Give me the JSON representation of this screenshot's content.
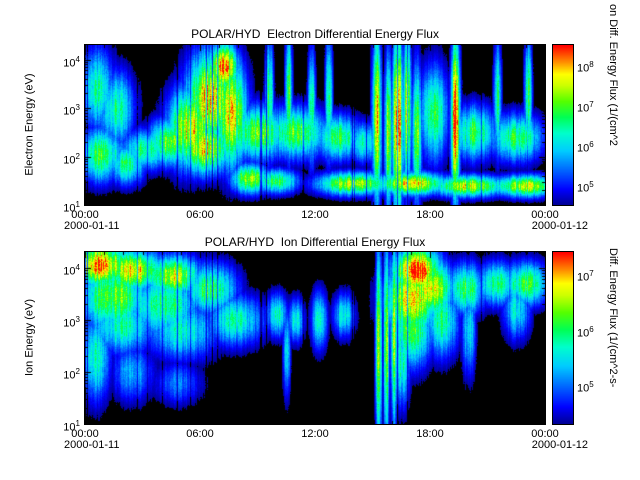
{
  "window": {
    "background": "#ffffff",
    "text_color": "#000000",
    "plot_background": "#000000"
  },
  "colormap": {
    "background": "#000000",
    "stops": [
      [
        0.0,
        "#000090"
      ],
      [
        0.1,
        "#0000ff"
      ],
      [
        0.22,
        "#0066ff"
      ],
      [
        0.34,
        "#00ccff"
      ],
      [
        0.45,
        "#00ffcc"
      ],
      [
        0.55,
        "#00ff55"
      ],
      [
        0.65,
        "#55ff00"
      ],
      [
        0.75,
        "#ccff00"
      ],
      [
        0.82,
        "#ffff00"
      ],
      [
        0.9,
        "#ff8800"
      ],
      [
        1.0,
        "#ff0000"
      ]
    ]
  },
  "chart_data": [
    {
      "type": "heatmap",
      "title": "POLAR/HYD  Electron Differential Energy Flux",
      "ylabel": "Electron Energy (eV)",
      "y_log_range": [
        1,
        4.3
      ],
      "y_tick_exponents": [
        4,
        3,
        2,
        1
      ],
      "x_tick_labels": [
        "00:00",
        "06:00",
        "12:00",
        "18:00",
        "00:00"
      ],
      "x_range_hours": [
        0,
        24
      ],
      "x_dates": [
        "2000-01-11",
        "2000-01-12"
      ],
      "grid": false,
      "colorbar": {
        "label": "on Diff. Energy Flux (1/(cm^2",
        "tick_exponents": [
          8,
          7,
          6,
          5
        ],
        "log_range": [
          4.5,
          8.5
        ]
      },
      "blob_encoding": "t=hours 0-24, e=log10 energy (eV), st/se=gaussian widths, a=relative flux amplitude 0-1 of color scale",
      "blobs": [
        {
          "t": 0.6,
          "e": 3.4,
          "st": 0.7,
          "se": 0.6,
          "a": 0.5
        },
        {
          "t": 1.6,
          "e": 3.0,
          "st": 0.7,
          "se": 0.55,
          "a": 0.52
        },
        {
          "t": 0.8,
          "e": 2.05,
          "st": 0.9,
          "se": 0.4,
          "a": 0.6
        },
        {
          "t": 2.2,
          "e": 1.85,
          "st": 0.7,
          "se": 0.3,
          "a": 0.55
        },
        {
          "t": 3.2,
          "e": 2.15,
          "st": 0.9,
          "se": 0.3,
          "a": 0.6
        },
        {
          "t": 4.3,
          "e": 2.3,
          "st": 0.8,
          "se": 0.35,
          "a": 0.7
        },
        {
          "t": 5.5,
          "e": 2.6,
          "st": 0.9,
          "se": 0.6,
          "a": 0.8
        },
        {
          "t": 6.5,
          "e": 3.2,
          "st": 0.9,
          "se": 0.7,
          "a": 0.85
        },
        {
          "t": 7.2,
          "e": 3.85,
          "st": 0.55,
          "se": 0.35,
          "a": 0.92
        },
        {
          "t": 6.2,
          "e": 2.2,
          "st": 1.0,
          "se": 0.4,
          "a": 0.8
        },
        {
          "t": 7.6,
          "e": 2.9,
          "st": 0.6,
          "se": 0.8,
          "a": 0.8
        },
        {
          "t": 8.6,
          "e": 1.55,
          "st": 0.7,
          "se": 0.22,
          "a": 0.72
        },
        {
          "t": 9.0,
          "e": 2.5,
          "st": 1.2,
          "se": 0.4,
          "a": 0.65
        },
        {
          "t": 9.6,
          "e": 3.2,
          "st": 0.15,
          "se": 0.9,
          "a": 0.6
        },
        {
          "t": 10.6,
          "e": 3.3,
          "st": 0.13,
          "se": 0.95,
          "a": 0.62
        },
        {
          "t": 11.0,
          "e": 2.5,
          "st": 1.2,
          "se": 0.38,
          "a": 0.63
        },
        {
          "t": 11.8,
          "e": 3.0,
          "st": 0.14,
          "se": 0.85,
          "a": 0.6
        },
        {
          "t": 12.7,
          "e": 3.2,
          "st": 0.13,
          "se": 0.95,
          "a": 0.6
        },
        {
          "t": 13.2,
          "e": 2.4,
          "st": 0.9,
          "se": 0.33,
          "a": 0.58
        },
        {
          "t": 14.5,
          "e": 2.3,
          "st": 0.6,
          "se": 0.3,
          "a": 0.5
        },
        {
          "t": 15.2,
          "e": 2.8,
          "st": 0.17,
          "se": 1.25,
          "a": 0.82
        },
        {
          "t": 15.8,
          "e": 2.5,
          "st": 0.14,
          "se": 1.15,
          "a": 0.72
        },
        {
          "t": 16.3,
          "e": 2.7,
          "st": 0.2,
          "se": 1.35,
          "a": 0.98
        },
        {
          "t": 16.8,
          "e": 3.0,
          "st": 0.14,
          "se": 1.15,
          "a": 0.78
        },
        {
          "t": 17.3,
          "e": 2.5,
          "st": 0.18,
          "se": 1.0,
          "a": 0.66
        },
        {
          "t": 18.2,
          "e": 2.9,
          "st": 0.5,
          "se": 0.7,
          "a": 0.6
        },
        {
          "t": 19.3,
          "e": 2.8,
          "st": 0.17,
          "se": 1.2,
          "a": 0.95
        },
        {
          "t": 20.3,
          "e": 2.5,
          "st": 0.8,
          "se": 0.4,
          "a": 0.6
        },
        {
          "t": 21.5,
          "e": 3.2,
          "st": 0.14,
          "se": 0.85,
          "a": 0.55
        },
        {
          "t": 22.5,
          "e": 2.4,
          "st": 1.0,
          "se": 0.35,
          "a": 0.58
        },
        {
          "t": 23.1,
          "e": 3.3,
          "st": 0.14,
          "se": 0.85,
          "a": 0.58
        },
        {
          "t": 14.0,
          "e": 1.45,
          "st": 1.4,
          "se": 0.17,
          "a": 0.76
        },
        {
          "t": 17.0,
          "e": 1.45,
          "st": 1.4,
          "se": 0.17,
          "a": 0.78
        },
        {
          "t": 20.0,
          "e": 1.4,
          "st": 1.4,
          "se": 0.16,
          "a": 0.76
        },
        {
          "t": 23.0,
          "e": 1.4,
          "st": 1.3,
          "se": 0.16,
          "a": 0.74
        },
        {
          "t": 10.0,
          "e": 1.5,
          "st": 0.8,
          "se": 0.18,
          "a": 0.6
        }
      ]
    },
    {
      "type": "heatmap",
      "title": "POLAR/HYD  Ion Differential Energy Flux",
      "ylabel": "Ion Energy (eV)",
      "y_log_range": [
        1,
        4.3
      ],
      "y_tick_exponents": [
        4,
        3,
        2,
        1
      ],
      "x_tick_labels": [
        "00:00",
        "06:00",
        "12:00",
        "18:00",
        "00:00"
      ],
      "x_range_hours": [
        0,
        24
      ],
      "x_dates": [
        "2000-01-11",
        "2000-01-12"
      ],
      "grid": false,
      "colorbar": {
        "label": "Diff. Energy Flux (1/(cm^2-s-",
        "tick_exponents": [
          7,
          6,
          5
        ],
        "log_range": [
          4.3,
          7.4
        ]
      },
      "blob_encoding": "t=hours 0-24, e=log10 energy (eV), st/se=gaussian widths, a=relative flux amplitude 0-1 of color scale",
      "blobs": [
        {
          "t": 0.8,
          "e": 4.05,
          "st": 1.1,
          "se": 0.3,
          "a": 0.9
        },
        {
          "t": 2.6,
          "e": 3.95,
          "st": 1.1,
          "se": 0.28,
          "a": 0.85
        },
        {
          "t": 4.5,
          "e": 3.85,
          "st": 1.1,
          "se": 0.28,
          "a": 0.78
        },
        {
          "t": 1.5,
          "e": 3.45,
          "st": 1.4,
          "se": 0.5,
          "a": 0.65
        },
        {
          "t": 4.0,
          "e": 3.3,
          "st": 1.4,
          "se": 0.45,
          "a": 0.6
        },
        {
          "t": 6.5,
          "e": 3.6,
          "st": 1.0,
          "se": 0.35,
          "a": 0.6
        },
        {
          "t": 2.0,
          "e": 2.9,
          "st": 1.4,
          "se": 0.4,
          "a": 0.5
        },
        {
          "t": 5.0,
          "e": 2.8,
          "st": 1.4,
          "se": 0.4,
          "a": 0.48
        },
        {
          "t": 7.8,
          "e": 3.0,
          "st": 1.1,
          "se": 0.35,
          "a": 0.5
        },
        {
          "t": 0.5,
          "e": 2.3,
          "st": 0.6,
          "se": 0.6,
          "a": 0.48
        },
        {
          "t": 2.5,
          "e": 2.0,
          "st": 0.8,
          "se": 0.4,
          "a": 0.36
        },
        {
          "t": 4.8,
          "e": 1.8,
          "st": 0.9,
          "se": 0.3,
          "a": 0.3
        },
        {
          "t": 10.0,
          "e": 3.1,
          "st": 0.4,
          "se": 0.3,
          "a": 0.5
        },
        {
          "t": 11.0,
          "e": 3.0,
          "st": 0.3,
          "se": 0.3,
          "a": 0.46
        },
        {
          "t": 12.2,
          "e": 3.0,
          "st": 0.3,
          "se": 0.4,
          "a": 0.5
        },
        {
          "t": 13.5,
          "e": 3.1,
          "st": 0.4,
          "se": 0.3,
          "a": 0.46
        },
        {
          "t": 10.5,
          "e": 2.4,
          "st": 0.14,
          "se": 0.6,
          "a": 0.45
        },
        {
          "t": 15.3,
          "e": 2.5,
          "st": 0.12,
          "se": 1.4,
          "a": 0.7
        },
        {
          "t": 15.7,
          "e": 2.6,
          "st": 0.1,
          "se": 1.4,
          "a": 0.75
        },
        {
          "t": 16.1,
          "e": 2.8,
          "st": 0.12,
          "se": 1.3,
          "a": 0.7
        },
        {
          "t": 17.3,
          "e": 3.95,
          "st": 0.9,
          "se": 0.32,
          "a": 0.96
        },
        {
          "t": 17.0,
          "e": 3.4,
          "st": 1.0,
          "se": 0.5,
          "a": 0.8
        },
        {
          "t": 18.1,
          "e": 3.6,
          "st": 0.8,
          "se": 0.4,
          "a": 0.8
        },
        {
          "t": 17.0,
          "e": 2.8,
          "st": 0.8,
          "se": 0.5,
          "a": 0.6
        },
        {
          "t": 18.6,
          "e": 3.0,
          "st": 0.6,
          "se": 0.5,
          "a": 0.55
        },
        {
          "t": 16.5,
          "e": 2.2,
          "st": 0.3,
          "se": 0.6,
          "a": 0.5
        },
        {
          "t": 19.9,
          "e": 3.6,
          "st": 0.7,
          "se": 0.35,
          "a": 0.6
        },
        {
          "t": 21.5,
          "e": 3.7,
          "st": 0.8,
          "se": 0.3,
          "a": 0.55
        },
        {
          "t": 23.0,
          "e": 3.7,
          "st": 0.9,
          "se": 0.3,
          "a": 0.6
        },
        {
          "t": 20.0,
          "e": 2.8,
          "st": 0.25,
          "se": 0.6,
          "a": 0.45
        },
        {
          "t": 22.5,
          "e": 3.2,
          "st": 0.5,
          "se": 0.4,
          "a": 0.45
        }
      ]
    }
  ]
}
